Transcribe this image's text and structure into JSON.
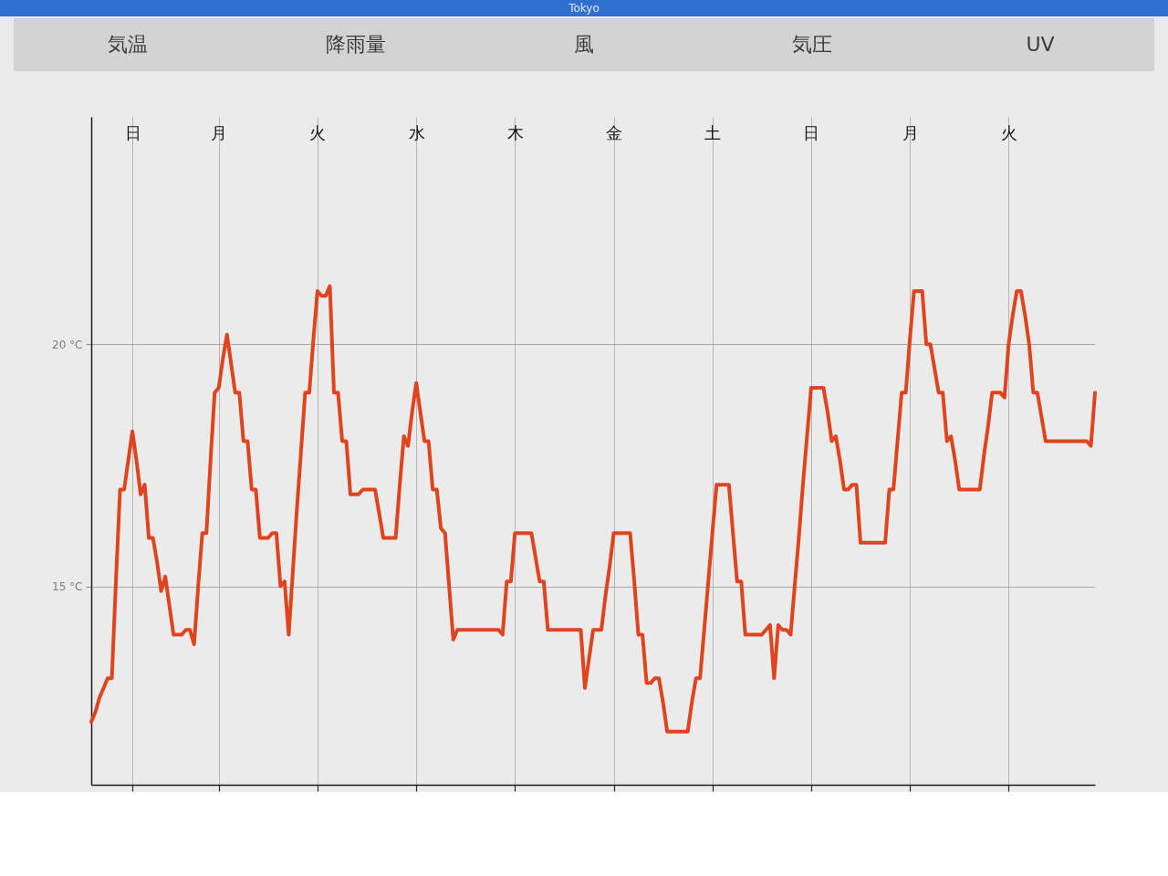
{
  "chart_data": {
    "type": "line",
    "title": "Tokyo",
    "annotations": [
      "気温",
      "降雨量",
      "風",
      "気圧",
      "UV"
    ],
    "categories": [
      null,
      null,
      null,
      null,
      null,
      null,
      null,
      null,
      null,
      null,
      "日",
      null,
      null,
      null,
      null,
      null,
      null,
      null,
      null,
      null,
      null,
      null,
      null,
      null,
      null,
      null,
      null,
      null,
      null,
      null,
      null,
      "月",
      null,
      null,
      null,
      null,
      null,
      null,
      null,
      null,
      null,
      null,
      null,
      null,
      null,
      null,
      null,
      null,
      null,
      null,
      null,
      null,
      null,
      null,
      null,
      "火",
      null,
      null,
      null,
      null,
      null,
      null,
      null,
      null,
      null,
      null,
      null,
      null,
      null,
      null,
      null,
      null,
      null,
      null,
      null,
      null,
      null,
      null,
      null,
      "水",
      null,
      null,
      null,
      null,
      null,
      null,
      null,
      null,
      null,
      null,
      null,
      null,
      null,
      null,
      null,
      null,
      null,
      null,
      null,
      null,
      null,
      null,
      null,
      "木",
      null,
      null,
      null,
      null,
      null,
      null,
      null,
      null,
      null,
      null,
      null,
      null,
      null,
      null,
      null,
      null,
      null,
      null,
      null,
      null,
      null,
      null,
      null,
      "金",
      null,
      null,
      null,
      null,
      null,
      null,
      null,
      null,
      null,
      null,
      null,
      null,
      null,
      null,
      null,
      null,
      null,
      null,
      null,
      null,
      null,
      null,
      null,
      "土",
      null,
      null,
      null,
      null,
      null,
      null,
      null,
      null,
      null,
      null,
      null,
      null,
      null,
      null,
      null,
      null,
      null,
      null,
      null,
      null,
      null,
      null,
      null,
      "日",
      null,
      null,
      null,
      null,
      null,
      null,
      null,
      null,
      null,
      null,
      null,
      null,
      null,
      null,
      null,
      null,
      null,
      null,
      null,
      null,
      null,
      null,
      null,
      "月",
      null,
      null,
      null,
      null,
      null,
      null,
      null,
      null,
      null,
      null,
      null,
      null,
      null,
      null,
      null,
      null,
      null,
      null,
      null,
      null,
      null,
      null,
      null,
      "火",
      null,
      null,
      null,
      null,
      null,
      null,
      null,
      null,
      null,
      null,
      null,
      null,
      null,
      null,
      null,
      null,
      null,
      null,
      null,
      null,
      null
    ],
    "series": [
      {
        "color": "#e0441e",
        "values": [
          12.2,
          12.4,
          12.7,
          12.9,
          13.1,
          13.1,
          15.1,
          17.0,
          17.0,
          17.6,
          18.2,
          17.6,
          16.9,
          17.1,
          16.0,
          16.0,
          15.5,
          14.9,
          15.2,
          14.6,
          14.0,
          14.0,
          14.0,
          14.1,
          14.1,
          13.8,
          15.0,
          16.1,
          16.1,
          17.6,
          19.0,
          19.1,
          19.7,
          20.2,
          19.6,
          19.0,
          19.0,
          18.0,
          18.0,
          17.0,
          17.0,
          16.0,
          16.0,
          16.0,
          16.1,
          16.1,
          15.0,
          15.1,
          14.0,
          15.3,
          16.6,
          17.8,
          19.0,
          19.0,
          20.1,
          21.1,
          21.0,
          21.0,
          21.2,
          19.0,
          19.0,
          18.0,
          18.0,
          16.9,
          16.9,
          16.9,
          17.0,
          17.0,
          17.0,
          17.0,
          16.5,
          16.0,
          16.0,
          16.0,
          16.0,
          17.1,
          18.1,
          17.9,
          18.6,
          19.2,
          18.6,
          18.0,
          18.0,
          17.0,
          17.0,
          16.2,
          16.1,
          15.0,
          13.9,
          14.1,
          14.1,
          14.1,
          14.1,
          14.1,
          14.1,
          14.1,
          14.1,
          14.1,
          14.1,
          14.1,
          14.0,
          15.1,
          15.1,
          16.1,
          16.1,
          16.1,
          16.1,
          16.1,
          15.6,
          15.1,
          15.1,
          14.1,
          14.1,
          14.1,
          14.1,
          14.1,
          14.1,
          14.1,
          14.1,
          14.1,
          12.9,
          13.5,
          14.1,
          14.1,
          14.1,
          14.8,
          15.4,
          16.1,
          16.1,
          16.1,
          16.1,
          16.1,
          15.1,
          14.0,
          14.0,
          13.0,
          13.0,
          13.1,
          13.1,
          12.6,
          12.0,
          12.0,
          12.0,
          12.0,
          12.0,
          12.0,
          12.6,
          13.1,
          13.1,
          14.1,
          15.1,
          16.1,
          17.1,
          17.1,
          17.1,
          17.1,
          16.1,
          15.1,
          15.1,
          14.0,
          14.0,
          14.0,
          14.0,
          14.0,
          14.1,
          14.2,
          13.1,
          14.2,
          14.1,
          14.1,
          14.0,
          15.0,
          16.0,
          17.1,
          18.1,
          19.1,
          19.1,
          19.1,
          19.1,
          18.6,
          18.0,
          18.1,
          17.6,
          17.0,
          17.0,
          17.1,
          17.1,
          15.9,
          15.9,
          15.9,
          15.9,
          15.9,
          15.9,
          15.9,
          17.0,
          17.0,
          18.0,
          19.0,
          19.0,
          20.1,
          21.1,
          21.1,
          21.1,
          20.0,
          20.0,
          19.5,
          19.0,
          19.0,
          18.0,
          18.1,
          17.6,
          17.0,
          17.0,
          17.0,
          17.0,
          17.0,
          17.0,
          17.7,
          18.3,
          19.0,
          19.0,
          19.0,
          18.9,
          20.0,
          20.6,
          21.1,
          21.1,
          20.6,
          20.0,
          19.0,
          19.0,
          18.5,
          18.0,
          18.0,
          18.0,
          18.0,
          18.0,
          18.0,
          18.0,
          18.0,
          18.0,
          18.0,
          18.0,
          17.9,
          19.0
        ]
      }
    ],
    "ylim": [
      10.9,
      24.7
    ],
    "yticks": [
      {
        "value": 15,
        "label": "15 °C"
      },
      {
        "value": 20,
        "label": "20 °C"
      }
    ],
    "grid": true
  }
}
